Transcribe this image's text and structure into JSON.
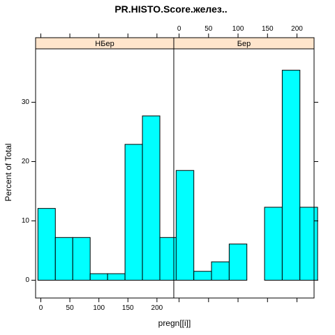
{
  "chart_data": {
    "type": "bar",
    "title": "PR.HISTO.Score.желез..",
    "xlabel": "pregn[[i]]",
    "ylabel": "Percent of Total",
    "xlim": [
      -9,
      229
    ],
    "ylim": [
      -3,
      39
    ],
    "xticks": [
      0,
      50,
      100,
      150,
      200
    ],
    "yticks": [
      0,
      10,
      20,
      30
    ],
    "bin_edges": [
      -5,
      25,
      55,
      85,
      115,
      145,
      175,
      205,
      235
    ],
    "panels": [
      {
        "strip_label": "НБер",
        "values": [
          12.1,
          7.2,
          7.2,
          1.1,
          1.1,
          22.9,
          27.7,
          7.2
        ]
      },
      {
        "strip_label": "Бер",
        "values": [
          18.5,
          1.5,
          3.1,
          6.1,
          0,
          12.3,
          35.4,
          12.3
        ]
      }
    ],
    "colors": {
      "fill": "#00ffff",
      "strip": "#ffe5cc",
      "stroke": "#000000"
    }
  }
}
